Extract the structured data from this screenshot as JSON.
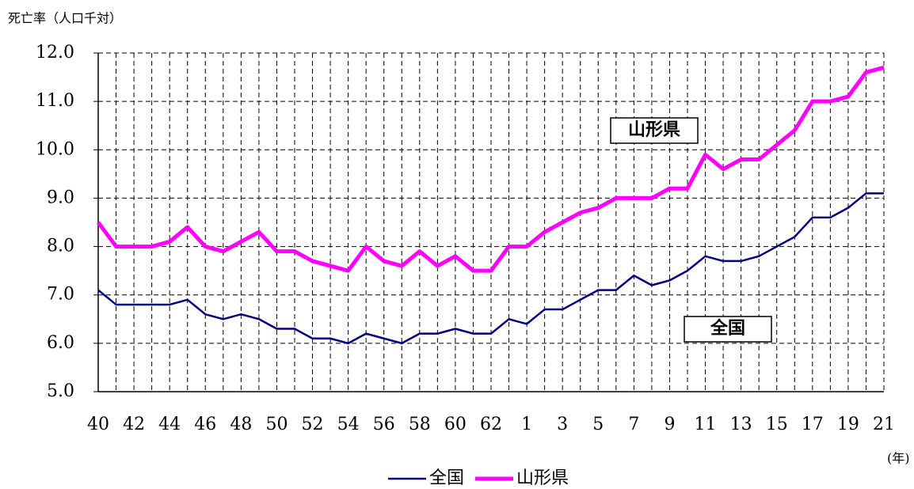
{
  "chart_data": {
    "type": "line",
    "ylabel": "死亡率（人口千対）",
    "xlabel": "(年)",
    "categories": [
      "40",
      null,
      "42",
      null,
      "44",
      null,
      "46",
      null,
      "48",
      null,
      "50",
      null,
      "52",
      null,
      "54",
      null,
      "56",
      null,
      "58",
      null,
      "60",
      null,
      "62",
      null,
      "1",
      null,
      "3",
      null,
      "5",
      null,
      "7",
      null,
      "9",
      null,
      "11",
      null,
      "13",
      null,
      "15",
      null,
      "17",
      null,
      "19",
      null,
      "21"
    ],
    "series": [
      {
        "name": "全国",
        "color": "#000080",
        "values": [
          7.1,
          6.8,
          6.8,
          6.8,
          6.8,
          6.9,
          6.6,
          6.5,
          6.6,
          6.5,
          6.3,
          6.3,
          6.1,
          6.1,
          6.0,
          6.2,
          6.1,
          6.0,
          6.2,
          6.2,
          6.3,
          6.2,
          6.2,
          6.5,
          6.4,
          6.7,
          6.7,
          6.9,
          7.1,
          7.1,
          7.4,
          7.2,
          7.3,
          7.5,
          7.8,
          7.7,
          7.7,
          7.8,
          8.0,
          8.2,
          8.6,
          8.6,
          8.8,
          9.1,
          9.1
        ]
      },
      {
        "name": "山形県",
        "color": "#ff00ff",
        "values": [
          8.5,
          8.0,
          8.0,
          8.0,
          8.1,
          8.4,
          8.0,
          7.9,
          8.1,
          8.3,
          7.9,
          7.9,
          7.7,
          7.6,
          7.5,
          8.0,
          7.7,
          7.6,
          7.9,
          7.6,
          7.8,
          7.5,
          7.5,
          8.0,
          8.0,
          8.3,
          8.5,
          8.7,
          8.8,
          9.0,
          9.0,
          9.0,
          9.2,
          9.2,
          9.9,
          9.6,
          9.8,
          9.8,
          10.1,
          10.4,
          11.0,
          11.0,
          11.1,
          11.6,
          11.7
        ]
      }
    ],
    "annotations": [
      "山形県",
      "全国"
    ],
    "ylim": [
      5,
      12
    ],
    "yticks": [
      {
        "value": 5,
        "label": "5.0"
      },
      {
        "value": 6,
        "label": "6.0"
      },
      {
        "value": 7,
        "label": "7.0"
      },
      {
        "value": 8,
        "label": "8.0"
      },
      {
        "value": 9,
        "label": "9.0"
      },
      {
        "value": 10,
        "label": "10.0"
      },
      {
        "value": 11,
        "label": "11.0"
      },
      {
        "value": 12,
        "label": "12.0"
      }
    ],
    "grid": true
  }
}
